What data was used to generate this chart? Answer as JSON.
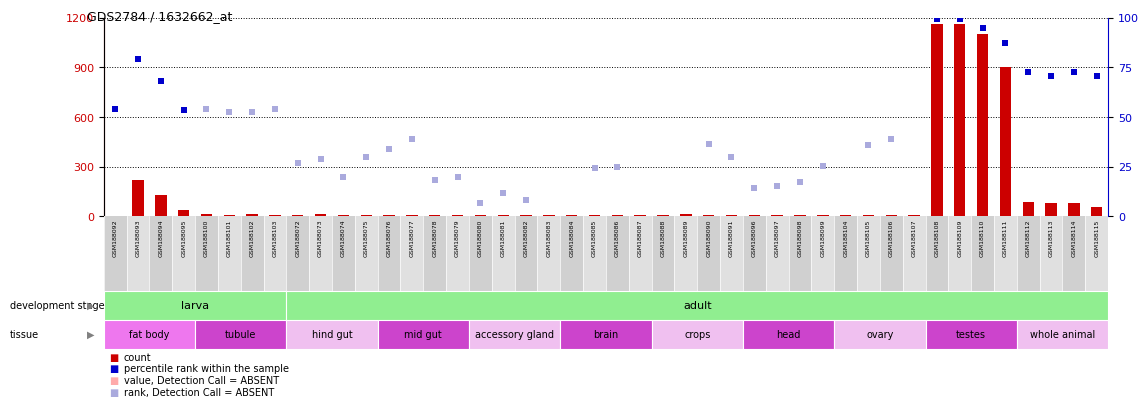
{
  "title": "GDS2784 / 1632662_at",
  "samples": [
    "GSM188092",
    "GSM188093",
    "GSM188094",
    "GSM188095",
    "GSM188100",
    "GSM188101",
    "GSM188102",
    "GSM188103",
    "GSM188072",
    "GSM188073",
    "GSM188074",
    "GSM188075",
    "GSM188076",
    "GSM188077",
    "GSM188078",
    "GSM188079",
    "GSM188080",
    "GSM188081",
    "GSM188082",
    "GSM188083",
    "GSM188084",
    "GSM188085",
    "GSM188086",
    "GSM188087",
    "GSM188088",
    "GSM188089",
    "GSM188090",
    "GSM188091",
    "GSM188096",
    "GSM188097",
    "GSM188098",
    "GSM188099",
    "GSM188104",
    "GSM188105",
    "GSM188106",
    "GSM188107",
    "GSM188108",
    "GSM188109",
    "GSM188110",
    "GSM188111",
    "GSM188112",
    "GSM188113",
    "GSM188114",
    "GSM188115"
  ],
  "count_values": [
    5,
    220,
    130,
    40,
    15,
    10,
    15,
    10,
    10,
    15,
    10,
    10,
    10,
    10,
    10,
    10,
    10,
    10,
    10,
    10,
    10,
    10,
    10,
    10,
    10,
    15,
    10,
    10,
    10,
    10,
    10,
    10,
    10,
    10,
    10,
    10,
    1160,
    1160,
    1100,
    900,
    90,
    80,
    80,
    60
  ],
  "count_absent": [
    true,
    false,
    false,
    false,
    false,
    false,
    false,
    false,
    false,
    false,
    false,
    false,
    false,
    false,
    false,
    false,
    false,
    false,
    false,
    false,
    false,
    false,
    false,
    false,
    false,
    false,
    false,
    false,
    false,
    false,
    false,
    false,
    false,
    false,
    false,
    false,
    false,
    false,
    false,
    false,
    false,
    false,
    false,
    false
  ],
  "rank_values": [
    650,
    950,
    820,
    640,
    650,
    630,
    630,
    650,
    320,
    350,
    240,
    360,
    410,
    470,
    220,
    240,
    80,
    140,
    100,
    null,
    null,
    290,
    300,
    null,
    null,
    null,
    440,
    360,
    170,
    185,
    210,
    305,
    null,
    430,
    470,
    null,
    1190,
    1190,
    1140,
    1050,
    875,
    850,
    875,
    850
  ],
  "rank_absent": [
    false,
    false,
    false,
    false,
    true,
    true,
    true,
    true,
    true,
    true,
    true,
    true,
    true,
    true,
    true,
    true,
    true,
    true,
    true,
    true,
    true,
    true,
    true,
    true,
    true,
    true,
    true,
    true,
    true,
    true,
    true,
    true,
    true,
    true,
    true,
    true,
    false,
    false,
    false,
    false,
    false,
    false,
    false,
    false
  ],
  "dev_stage_groups": [
    {
      "label": "larva",
      "start": 0,
      "end": 8,
      "color": "#90ee90"
    },
    {
      "label": "adult",
      "start": 8,
      "end": 44,
      "color": "#90ee90"
    }
  ],
  "tissue_groups": [
    {
      "label": "fat body",
      "start": 0,
      "end": 4,
      "color": "#ee77ee"
    },
    {
      "label": "tubule",
      "start": 4,
      "end": 8,
      "color": "#cc44cc"
    },
    {
      "label": "hind gut",
      "start": 8,
      "end": 12,
      "color": "#f0c0f0"
    },
    {
      "label": "mid gut",
      "start": 12,
      "end": 16,
      "color": "#cc44cc"
    },
    {
      "label": "accessory gland",
      "start": 16,
      "end": 20,
      "color": "#f0c0f0"
    },
    {
      "label": "brain",
      "start": 20,
      "end": 24,
      "color": "#cc44cc"
    },
    {
      "label": "crops",
      "start": 24,
      "end": 28,
      "color": "#f0c0f0"
    },
    {
      "label": "head",
      "start": 28,
      "end": 32,
      "color": "#cc44cc"
    },
    {
      "label": "ovary",
      "start": 32,
      "end": 36,
      "color": "#f0c0f0"
    },
    {
      "label": "testes",
      "start": 36,
      "end": 40,
      "color": "#cc44cc"
    },
    {
      "label": "whole animal",
      "start": 40,
      "end": 44,
      "color": "#f0c0f0"
    }
  ],
  "ylim_left": [
    0,
    1200
  ],
  "ylim_right": [
    0,
    100
  ],
  "yticks_left": [
    0,
    300,
    600,
    900,
    1200
  ],
  "yticks_right": [
    0,
    25,
    50,
    75,
    100
  ],
  "bar_color_present": "#cc0000",
  "bar_color_absent": "#ffaaaa",
  "dot_color_present": "#0000cc",
  "dot_color_absent": "#aaaadd",
  "background_color": "#ffffff",
  "title_color": "#000000",
  "left_axis_color": "#cc0000",
  "right_axis_color": "#0000cc",
  "label_bg_odd": "#d0d0d0",
  "label_bg_even": "#e0e0e0"
}
